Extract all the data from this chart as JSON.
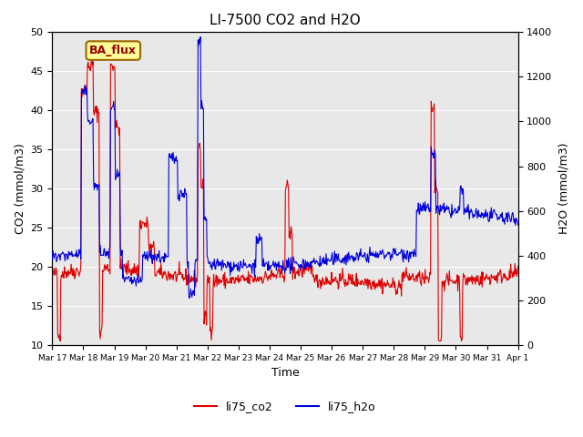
{
  "title": "LI-7500 CO2 and H2O",
  "xlabel": "Time",
  "ylabel_left": "CO2 (mmol/m3)",
  "ylabel_right": "H2O (mmol/m3)",
  "ylim_left": [
    10,
    50
  ],
  "ylim_right": [
    0,
    1400
  ],
  "annotation_text": "BA_flux",
  "annotation_bg": "#ffff99",
  "annotation_border": "#996600",
  "annotation_text_color": "#990000",
  "co2_color": "#dd0000",
  "h2o_color": "#0000dd",
  "bg_color": "#e8e8e8",
  "legend_labels": [
    "li75_co2",
    "li75_h2o"
  ],
  "xtick_labels": [
    "Mar 17",
    "Mar 18",
    "Mar 19",
    "Mar 20",
    "Mar 21",
    "Mar 22",
    "Mar 23",
    "Mar 24",
    "Mar 25",
    "Mar 26",
    "Mar 27",
    "Mar 28",
    "Mar 29",
    "Mar 30",
    "Mar 31",
    "Apr 1"
  ],
  "yticks_left": [
    10,
    15,
    20,
    25,
    30,
    35,
    40,
    45,
    50
  ],
  "yticks_right": [
    0,
    200,
    400,
    600,
    800,
    1000,
    1200,
    1400
  ]
}
